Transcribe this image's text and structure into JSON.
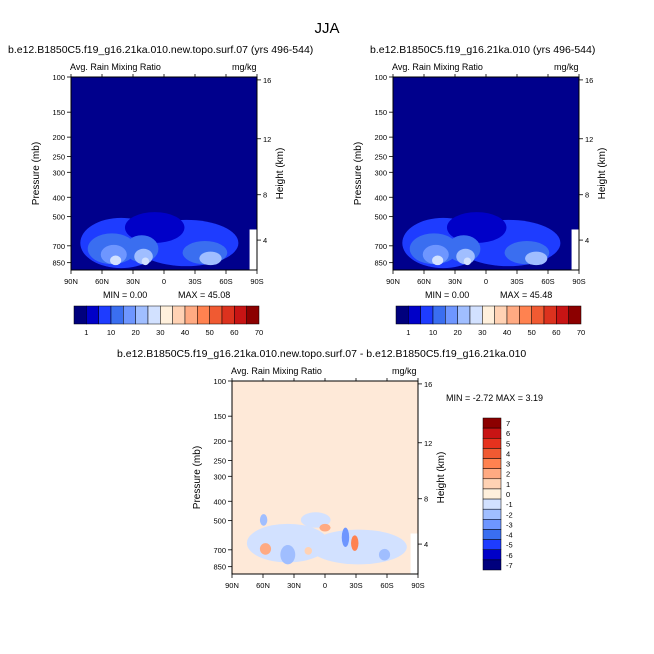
{
  "title": "JJA",
  "chart_data": [
    {
      "type": "heatmap",
      "title": "b.e12.B1850C5.f19_g16.21ka.010.new.topo.surf.07 (yrs 496-544)",
      "left_string": "Avg. Rain Mixing Ratio",
      "right_string": "mg/kg",
      "ylabel": "Pressure (mb)",
      "ylabel_right": "Height (km)",
      "xticks": [
        "90N",
        "60N",
        "30N",
        "0",
        "30S",
        "60S",
        "90S"
      ],
      "yticks": [
        "100",
        "150",
        "200",
        "250",
        "300",
        "400",
        "500",
        "700",
        "850"
      ],
      "yticks_right": [
        "16",
        "12",
        "8",
        "4"
      ],
      "min_label": "MIN =   0.00",
      "max_label": "MAX =  45.08",
      "colorbar_labels": [
        "1",
        "10",
        "20",
        "30",
        "40",
        "50",
        "60",
        "70"
      ]
    },
    {
      "type": "heatmap",
      "title": "b.e12.B1850C5.f19_g16.21ka.010 (yrs 496-544)",
      "left_string": "Avg. Rain Mixing Ratio",
      "right_string": "mg/kg",
      "ylabel": "Pressure (mb)",
      "ylabel_right": "Height (km)",
      "xticks": [
        "90N",
        "60N",
        "30N",
        "0",
        "30S",
        "60S",
        "90S"
      ],
      "yticks": [
        "100",
        "150",
        "200",
        "250",
        "300",
        "400",
        "500",
        "700",
        "850"
      ],
      "yticks_right": [
        "16",
        "12",
        "8",
        "4"
      ],
      "min_label": "MIN =   0.00",
      "max_label": "MAX =  45.48",
      "colorbar_labels": [
        "1",
        "10",
        "20",
        "30",
        "40",
        "50",
        "60",
        "70"
      ]
    },
    {
      "type": "heatmap",
      "title": "b.e12.B1850C5.f19_g16.21ka.010.new.topo.surf.07 - b.e12.B1850C5.f19_g16.21ka.010",
      "left_string": "Avg. Rain Mixing Ratio",
      "right_string": "mg/kg",
      "ylabel": "Pressure (mb)",
      "ylabel_right": "Height (km)",
      "xticks": [
        "90N",
        "60N",
        "30N",
        "0",
        "30S",
        "60S",
        "90S"
      ],
      "yticks": [
        "100",
        "150",
        "200",
        "250",
        "300",
        "400",
        "500",
        "700",
        "850"
      ],
      "yticks_right": [
        "16",
        "12",
        "8",
        "4"
      ],
      "minmax_label": "MIN =  -2.72   MAX =   3.19",
      "colorbar_labels": [
        "7",
        "6",
        "5",
        "4",
        "3",
        "2",
        "1",
        "0",
        "-1",
        "-2",
        "-3",
        "-4",
        "-5",
        "-6",
        "-7"
      ]
    }
  ],
  "colors": {
    "abs_scale": [
      "#00007d",
      "#0000c8",
      "#1e3cff",
      "#3a6ef0",
      "#6e96ff",
      "#a0beff",
      "#d2e1ff",
      "#fff0dc",
      "#ffd2b4",
      "#ffaa82",
      "#ff8250",
      "#f05a32",
      "#dc321e",
      "#c81414",
      "#8c0000"
    ],
    "diff_scale": [
      "#8c0000",
      "#c81414",
      "#e6321e",
      "#f05a32",
      "#ff8250",
      "#ffaa82",
      "#ffd2b4",
      "#fff0dc",
      "#d2e1ff",
      "#a0beff",
      "#6e96ff",
      "#3a6ef0",
      "#1e3cff",
      "#0000c8",
      "#00007d"
    ],
    "background_abs": "#00008c",
    "background_diff": "#fee9d8"
  }
}
